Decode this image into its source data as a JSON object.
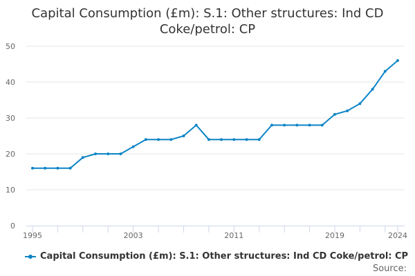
{
  "chart_data": {
    "type": "line",
    "title": "Capital Consumption (£m): S.1: Other structures: Ind CD Coke/petrol: CP",
    "x": [
      1995,
      1996,
      1997,
      1998,
      1999,
      2000,
      2001,
      2002,
      2003,
      2004,
      2005,
      2006,
      2007,
      2008,
      2009,
      2010,
      2011,
      2012,
      2013,
      2014,
      2015,
      2016,
      2017,
      2018,
      2019,
      2020,
      2021,
      2022,
      2023,
      2024
    ],
    "series": [
      {
        "name": "Capital Consumption (£m): S.1: Other structures: Ind CD Coke/petrol: CP",
        "values": [
          16,
          16,
          16,
          16,
          19,
          20,
          20,
          20,
          22,
          24,
          24,
          24,
          25,
          28,
          24,
          24,
          24,
          24,
          24,
          28,
          28,
          28,
          28,
          28,
          31,
          32,
          34,
          38,
          43,
          46
        ],
        "color": "#0b84c6"
      }
    ],
    "xticks": [
      "1995",
      "2003",
      "2011",
      "2019",
      "2024"
    ],
    "yticks": [
      "0",
      "10",
      "20",
      "30",
      "40",
      "50"
    ],
    "ylim": [
      0,
      50
    ],
    "grid": true,
    "legend": "bottom"
  },
  "source_label": "Source:"
}
